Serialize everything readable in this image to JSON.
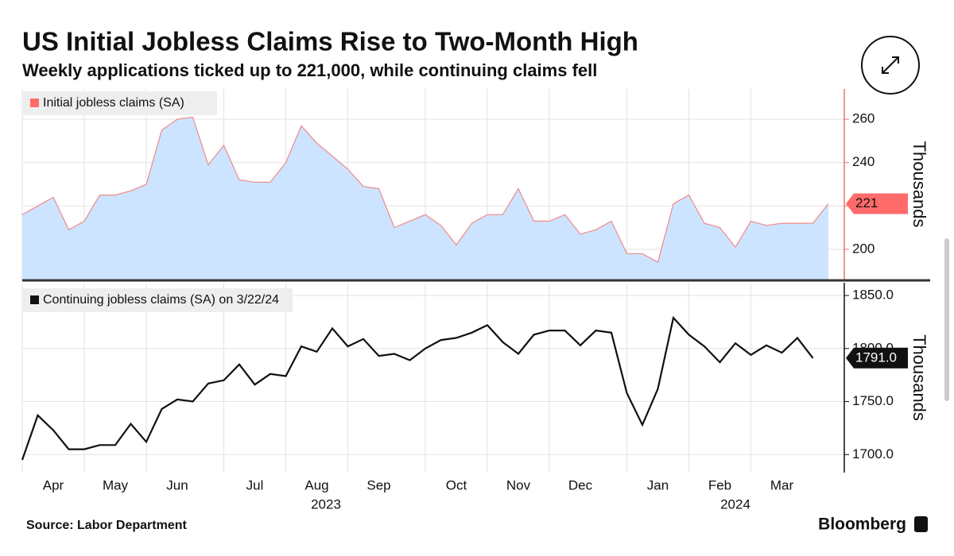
{
  "title": "US Initial Jobless Claims Rise to Two-Month High",
  "subtitle": "Weekly applications ticked up to 221,000, while continuing claims fell",
  "source": "Source: Labor Department",
  "brand": "Bloomberg",
  "chart_data": [
    {
      "type": "area",
      "ylabel": "Thousands",
      "ylim": [
        186,
        274
      ],
      "yticks": [
        200,
        220,
        240,
        260
      ],
      "axis_color": "#f07070",
      "label_last": true,
      "series": [
        {
          "name": "Initial jobless claims (SA)",
          "color": "#f08a8a",
          "fill": "#cce4ff",
          "label_fill": "#ff6b6b",
          "label_text": "#111111",
          "values": [
            216,
            220,
            224,
            209,
            213,
            225,
            225,
            227,
            230,
            255,
            260,
            261,
            239,
            248,
            232,
            231,
            231,
            240,
            257,
            249,
            243,
            237,
            229,
            228,
            210,
            213,
            216,
            211,
            202,
            212,
            216,
            216,
            228,
            213,
            213,
            216,
            207,
            209,
            213,
            198,
            198,
            194,
            221,
            225,
            212,
            210,
            201,
            213,
            211,
            212,
            212,
            212,
            221
          ]
        }
      ]
    },
    {
      "type": "line",
      "ylabel": "Thousands",
      "ylim": [
        1683,
        1862
      ],
      "yticks": [
        {
          "value": 1700,
          "label": "1700.0"
        },
        {
          "value": 1750,
          "label": "1750.0"
        },
        {
          "value": 1800,
          "label": "1800.0"
        },
        {
          "value": 1850,
          "label": "1850.0"
        }
      ],
      "axis_color": "#111111",
      "label_last": true,
      "categories": [
        null,
        null,
        "Apr",
        null,
        null,
        null,
        "May",
        null,
        null,
        null,
        "Jun",
        null,
        null,
        null,
        null,
        "Jul",
        null,
        null,
        null,
        "Aug",
        null,
        null,
        null,
        "Sep",
        null,
        null,
        null,
        null,
        "Oct",
        null,
        null,
        null,
        "Nov",
        null,
        null,
        null,
        "Dec",
        null,
        null,
        null,
        null,
        "Jan",
        null,
        null,
        null,
        "Feb",
        null,
        null,
        null,
        "Mar",
        null,
        null,
        null
      ],
      "year_labels": [
        "2023",
        "2024"
      ],
      "series": [
        {
          "name": "Continuing jobless claims (SA) on 3/22/24",
          "color": "#111111",
          "label_fill": "#111111",
          "label_text": "#ffffff",
          "values": [
            1695,
            1737,
            1723,
            1705,
            1705,
            1709,
            1709,
            1729,
            1712,
            1743,
            1752,
            1750,
            1767,
            1770,
            1785,
            1766,
            1776,
            1774,
            1802,
            1797,
            1819,
            1802,
            1809,
            1793,
            1795,
            1789,
            1800,
            1808,
            1810,
            1815,
            1822,
            1806,
            1795,
            1813,
            1817,
            1817,
            1803,
            1817,
            1815,
            1758,
            1728,
            1762,
            1829,
            1813,
            1802,
            1787,
            1805,
            1794,
            1803,
            1796,
            1810,
            1791,
            null
          ],
          "value_labels": [
            null,
            null,
            null,
            null,
            null,
            null,
            null,
            null,
            null,
            null,
            null,
            null,
            null,
            null,
            null,
            null,
            null,
            null,
            null,
            null,
            null,
            null,
            null,
            null,
            null,
            null,
            null,
            null,
            null,
            null,
            null,
            null,
            null,
            null,
            null,
            null,
            null,
            null,
            null,
            null,
            null,
            null,
            null,
            null,
            null,
            null,
            null,
            null,
            null,
            null,
            null,
            "1791.0",
            null
          ]
        }
      ]
    }
  ]
}
